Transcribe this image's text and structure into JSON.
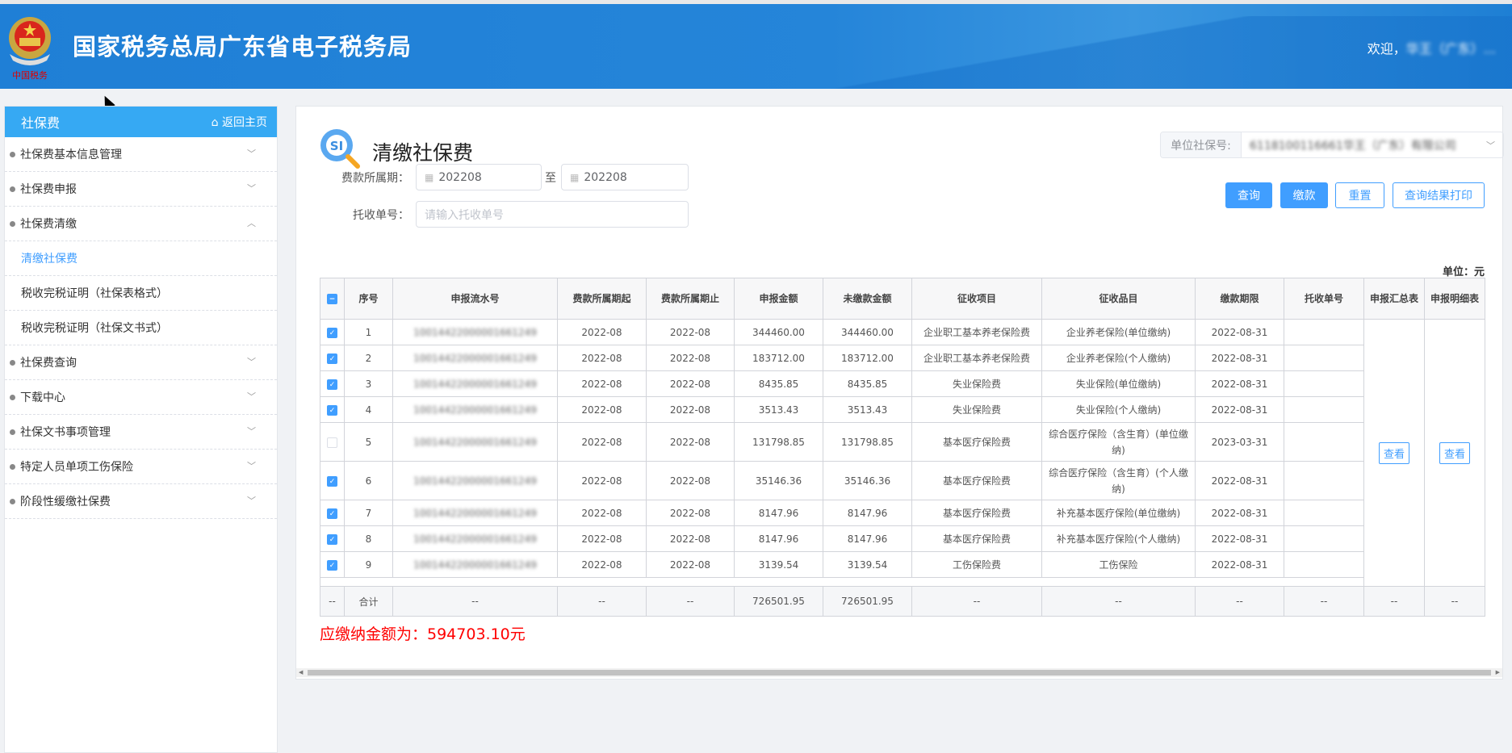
{
  "header": {
    "title": "国家税务总局广东省电子税务局",
    "logo_text": "中国税务",
    "welcome_prefix": "欢迎，",
    "welcome_user": "华王（广东）..."
  },
  "sidebar": {
    "title": "社保费",
    "home_link": "返回主页",
    "items": [
      {
        "label": "社保费基本信息管理",
        "type": "group",
        "expanded": false
      },
      {
        "label": "社保费申报",
        "type": "group",
        "expanded": false
      },
      {
        "label": "社保费清缴",
        "type": "group",
        "expanded": true
      },
      {
        "label": "清缴社保费",
        "type": "sub",
        "active": true
      },
      {
        "label": "税收完税证明（社保表格式）",
        "type": "sub"
      },
      {
        "label": "税收完税证明（社保文书式）",
        "type": "sub"
      },
      {
        "label": "社保费查询",
        "type": "group",
        "expanded": false
      },
      {
        "label": "下载中心",
        "type": "group",
        "expanded": false
      },
      {
        "label": "社保文书事项管理",
        "type": "group",
        "expanded": false
      },
      {
        "label": "特定人员单项工伤保险",
        "type": "group",
        "expanded": false
      },
      {
        "label": "阶段性缓缴社保费",
        "type": "group",
        "expanded": false
      }
    ]
  },
  "main": {
    "title": "清缴社保费",
    "unit_ssn_label": "单位社保号:",
    "unit_ssn_value": "6118100116661华王（广东）有限公司",
    "period_label": "费款所属期：",
    "period_from": "202208",
    "period_sep": "至",
    "period_to": "202208",
    "receipt_label": "托收单号：",
    "receipt_placeholder": "请输入托收单号",
    "buttons": {
      "query": "查询",
      "pay": "缴款",
      "reset": "重置",
      "print": "查询结果打印"
    },
    "unit_note": "单位：元",
    "table": {
      "headers": [
        "序号",
        "申报流水号",
        "费款所属期起",
        "费款所属期止",
        "申报金额",
        "未缴款金额",
        "征收项目",
        "征收品目",
        "缴款期限",
        "托收单号",
        "申报汇总表",
        "申报明细表"
      ],
      "rows": [
        {
          "checked": true,
          "no": "1",
          "serial": "10014422000001661249",
          "from": "2022-08",
          "to": "2022-08",
          "declared": "344460.00",
          "unpaid": "344460.00",
          "item": "企业职工基本养老保险费",
          "subitem": "企业养老保险(单位缴纳)",
          "deadline": "2022-08-31",
          "receipt": ""
        },
        {
          "checked": true,
          "no": "2",
          "serial": "10014422000001661249",
          "from": "2022-08",
          "to": "2022-08",
          "declared": "183712.00",
          "unpaid": "183712.00",
          "item": "企业职工基本养老保险费",
          "subitem": "企业养老保险(个人缴纳)",
          "deadline": "2022-08-31",
          "receipt": ""
        },
        {
          "checked": true,
          "no": "3",
          "serial": "10014422000001661249",
          "from": "2022-08",
          "to": "2022-08",
          "declared": "8435.85",
          "unpaid": "8435.85",
          "item": "失业保险费",
          "subitem": "失业保险(单位缴纳)",
          "deadline": "2022-08-31",
          "receipt": ""
        },
        {
          "checked": true,
          "no": "4",
          "serial": "10014422000001661249",
          "from": "2022-08",
          "to": "2022-08",
          "declared": "3513.43",
          "unpaid": "3513.43",
          "item": "失业保险费",
          "subitem": "失业保险(个人缴纳)",
          "deadline": "2022-08-31",
          "receipt": ""
        },
        {
          "checked": false,
          "no": "5",
          "serial": "10014422000001661249",
          "from": "2022-08",
          "to": "2022-08",
          "declared": "131798.85",
          "unpaid": "131798.85",
          "item": "基本医疗保险费",
          "subitem": "综合医疗保险（含生育）(单位缴纳)",
          "deadline": "2023-03-31",
          "receipt": ""
        },
        {
          "checked": true,
          "no": "6",
          "serial": "10014422000001661249",
          "from": "2022-08",
          "to": "2022-08",
          "declared": "35146.36",
          "unpaid": "35146.36",
          "item": "基本医疗保险费",
          "subitem": "综合医疗保险（含生育）(个人缴纳)",
          "deadline": "2022-08-31",
          "receipt": ""
        },
        {
          "checked": true,
          "no": "7",
          "serial": "10014422000001661249",
          "from": "2022-08",
          "to": "2022-08",
          "declared": "8147.96",
          "unpaid": "8147.96",
          "item": "基本医疗保险费",
          "subitem": "补充基本医疗保险(单位缴纳)",
          "deadline": "2022-08-31",
          "receipt": ""
        },
        {
          "checked": true,
          "no": "8",
          "serial": "10014422000001661249",
          "from": "2022-08",
          "to": "2022-08",
          "declared": "8147.96",
          "unpaid": "8147.96",
          "item": "基本医疗保险费",
          "subitem": "补充基本医疗保险(个人缴纳)",
          "deadline": "2022-08-31",
          "receipt": ""
        },
        {
          "checked": true,
          "no": "9",
          "serial": "10014422000001661249",
          "from": "2022-08",
          "to": "2022-08",
          "declared": "3139.54",
          "unpaid": "3139.54",
          "item": "工伤保险费",
          "subitem": "工伤保险",
          "deadline": "2022-08-31",
          "receipt": ""
        }
      ],
      "view_label": "查看",
      "total": {
        "check": "--",
        "label": "合计",
        "serial": "--",
        "from": "--",
        "to": "--",
        "declared": "726501.95",
        "unpaid": "726501.95",
        "item": "--",
        "subitem": "--",
        "deadline": "--",
        "receipt": "--",
        "summary": "--",
        "detail": "--"
      }
    },
    "amount_due": "应缴纳金额为：594703.10元"
  },
  "colors": {
    "header_blue": "#1f7fd6",
    "sidebar_head": "#36a9f3",
    "primary": "#409eff",
    "due_red": "#ff0000"
  }
}
